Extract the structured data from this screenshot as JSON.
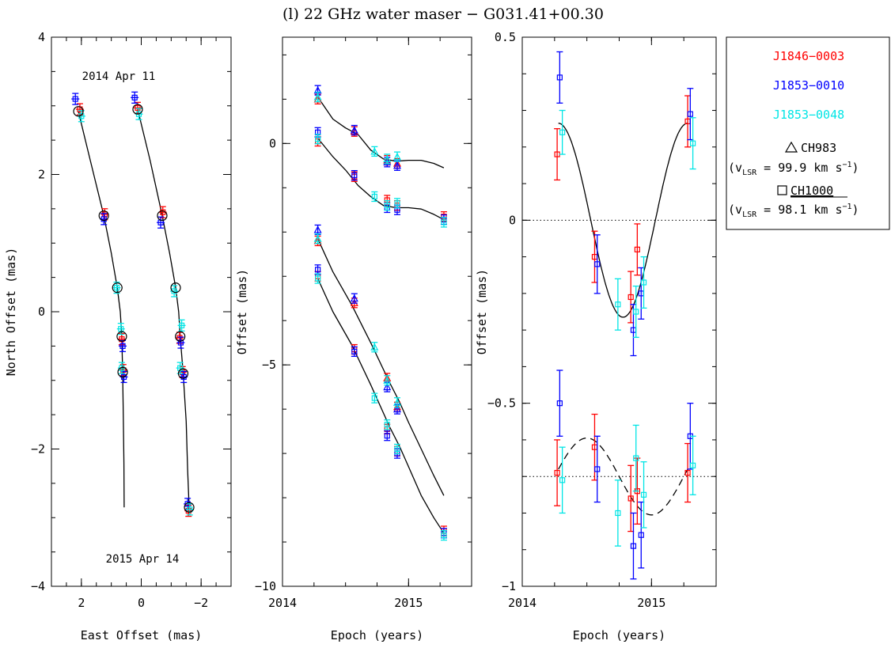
{
  "title": "(l) 22 GHz water maser − G031.41+00.30",
  "legend": {
    "references": [
      {
        "name": "J1846−0003",
        "color": "#ff0000"
      },
      {
        "name": "J1853−0010",
        "color": "#0000ff"
      },
      {
        "name": "J1853−0048",
        "color": "#00e5e5"
      }
    ],
    "spots": [
      {
        "marker": "triangle",
        "name": "CH983",
        "vel_prefix": "(v",
        "vel_sub": "LSR",
        "vel_value": " = 99.9 km s",
        "vel_exp": "−1",
        "vel_close": ")"
      },
      {
        "marker": "square",
        "name": "CH1000",
        "underline": true,
        "vel_prefix": "(v",
        "vel_sub": "LSR",
        "vel_value": " = 98.1 km s",
        "vel_exp": "−1",
        "vel_close": ")"
      }
    ]
  },
  "chart_data": [
    {
      "type": "scatter",
      "xlabel": "East Offset (mas)",
      "ylabel": "North Offset (mas)",
      "xlim": [
        3,
        -3
      ],
      "ylim": [
        -4,
        4
      ],
      "xticks": [
        2,
        0,
        -2
      ],
      "yticks": [
        -4,
        -2,
        0,
        2,
        4
      ],
      "annotations": [
        "2014 Apr 11",
        "2015 Apr 14"
      ],
      "open_circles": [
        [
          2.1,
          2.92
        ],
        [
          1.25,
          1.4
        ],
        [
          0.8,
          0.35
        ],
        [
          0.65,
          -0.36
        ],
        [
          0.62,
          -0.88
        ],
        [
          0.12,
          2.95
        ],
        [
          -0.7,
          1.4
        ],
        [
          -1.15,
          0.35
        ],
        [
          -1.3,
          -0.36
        ],
        [
          -1.4,
          -0.9
        ],
        [
          -1.6,
          -2.85
        ]
      ],
      "tracks": [
        [
          [
            2.1,
            2.92
          ],
          [
            1.7,
            2.2
          ],
          [
            1.25,
            1.4
          ],
          [
            1.0,
            0.85
          ],
          [
            0.8,
            0.35
          ],
          [
            0.7,
            0.0
          ],
          [
            0.65,
            -0.36
          ],
          [
            0.62,
            -0.88
          ],
          [
            0.6,
            -1.5
          ],
          [
            0.58,
            -2.2
          ],
          [
            0.57,
            -2.85
          ]
        ],
        [
          [
            0.12,
            2.95
          ],
          [
            -0.3,
            2.2
          ],
          [
            -0.7,
            1.4
          ],
          [
            -0.95,
            0.85
          ],
          [
            -1.15,
            0.35
          ],
          [
            -1.25,
            0.0
          ],
          [
            -1.3,
            -0.36
          ],
          [
            -1.4,
            -0.9
          ],
          [
            -1.5,
            -1.6
          ],
          [
            -1.55,
            -2.3
          ],
          [
            -1.6,
            -2.85
          ]
        ]
      ],
      "series": [
        {
          "name": "J1846−0003",
          "color": "#ff0000",
          "points": [
            [
              2.05,
              2.95
            ],
            [
              1.22,
              1.42
            ],
            [
              0.65,
              -0.4
            ],
            [
              0.6,
              -0.85
            ],
            [
              0.12,
              2.97
            ],
            [
              -0.72,
              1.45
            ],
            [
              -1.28,
              -0.38
            ],
            [
              -1.38,
              -0.88
            ],
            [
              -1.58,
              -2.9
            ]
          ]
        },
        {
          "name": "J1853−0010",
          "color": "#0000ff",
          "points": [
            [
              2.2,
              3.1
            ],
            [
              1.25,
              1.35
            ],
            [
              0.62,
              -0.5
            ],
            [
              0.58,
              -0.95
            ],
            [
              0.22,
              3.12
            ],
            [
              -0.65,
              1.3
            ],
            [
              -1.32,
              -0.45
            ],
            [
              -1.42,
              -0.95
            ],
            [
              -1.55,
              -2.8
            ]
          ]
        },
        {
          "name": "J1853−0048",
          "color": "#00e5e5",
          "points": [
            [
              2.0,
              2.85
            ],
            [
              0.82,
              0.35
            ],
            [
              0.68,
              -0.25
            ],
            [
              0.65,
              -0.82
            ],
            [
              0.08,
              2.88
            ],
            [
              -1.1,
              0.3
            ],
            [
              -1.35,
              -0.2
            ],
            [
              -1.3,
              -0.82
            ],
            [
              -1.62,
              -2.88
            ]
          ]
        }
      ]
    },
    {
      "type": "scatter",
      "xlabel": "Epoch (years)",
      "ylabel": "Offset (mas)",
      "xlim": [
        2014,
        2015.5
      ],
      "ylim": [
        -10,
        2.4
      ],
      "xticks": [
        2014,
        2015
      ],
      "yticks": [
        -10,
        -5,
        0
      ],
      "curves": [
        [
          [
            2014.28,
            1.05
          ],
          [
            2014.4,
            0.55
          ],
          [
            2014.5,
            0.35
          ],
          [
            2014.6,
            0.2
          ],
          [
            2014.7,
            -0.15
          ],
          [
            2014.8,
            -0.35
          ],
          [
            2014.9,
            -0.4
          ],
          [
            2015.0,
            -0.38
          ],
          [
            2015.1,
            -0.38
          ],
          [
            2015.2,
            -0.45
          ],
          [
            2015.28,
            -0.55
          ]
        ],
        [
          [
            2014.28,
            0.12
          ],
          [
            2014.4,
            -0.3
          ],
          [
            2014.5,
            -0.6
          ],
          [
            2014.6,
            -0.95
          ],
          [
            2014.7,
            -1.2
          ],
          [
            2014.8,
            -1.4
          ],
          [
            2014.9,
            -1.45
          ],
          [
            2015.0,
            -1.45
          ],
          [
            2015.1,
            -1.48
          ],
          [
            2015.2,
            -1.6
          ],
          [
            2015.28,
            -1.72
          ]
        ],
        [
          [
            2014.28,
            -2.15
          ],
          [
            2014.4,
            -2.9
          ],
          [
            2014.55,
            -3.65
          ],
          [
            2014.7,
            -4.5
          ],
          [
            2014.85,
            -5.4
          ],
          [
            2014.93,
            -5.85
          ],
          [
            2015.0,
            -6.3
          ],
          [
            2015.1,
            -6.9
          ],
          [
            2015.2,
            -7.5
          ],
          [
            2015.28,
            -7.95
          ]
        ],
        [
          [
            2014.28,
            -3.05
          ],
          [
            2014.4,
            -3.8
          ],
          [
            2014.55,
            -4.55
          ],
          [
            2014.7,
            -5.45
          ],
          [
            2014.85,
            -6.4
          ],
          [
            2014.93,
            -6.85
          ],
          [
            2015.0,
            -7.3
          ],
          [
            2015.1,
            -7.95
          ],
          [
            2015.2,
            -8.45
          ],
          [
            2015.28,
            -8.8
          ]
        ]
      ],
      "series": [
        {
          "name": "J1846−0003",
          "color": "#ff0000",
          "points": [
            [
              2014.28,
              1.0,
              "t"
            ],
            [
              2014.28,
              0.05,
              "s"
            ],
            [
              2014.57,
              0.27,
              "t"
            ],
            [
              2014.57,
              -0.75,
              "s"
            ],
            [
              2014.83,
              -0.38,
              "t"
            ],
            [
              2014.83,
              -1.28,
              "s"
            ],
            [
              2014.91,
              -0.45,
              "t"
            ],
            [
              2014.91,
              -1.4,
              "s"
            ],
            [
              2014.28,
              -2.2,
              "t"
            ],
            [
              2014.28,
              -3.0,
              "s"
            ],
            [
              2014.57,
              -3.6,
              "t"
            ],
            [
              2014.57,
              -4.65,
              "s"
            ],
            [
              2014.83,
              -5.3,
              "t"
            ],
            [
              2014.83,
              -6.45,
              "s"
            ],
            [
              2014.91,
              -5.95,
              "t"
            ],
            [
              2014.91,
              -6.95,
              "s"
            ],
            [
              2015.28,
              -1.65,
              "s"
            ],
            [
              2015.28,
              -8.75,
              "s"
            ]
          ]
        },
        {
          "name": "J1853−0010",
          "color": "#0000ff",
          "points": [
            [
              2014.28,
              1.2,
              "t"
            ],
            [
              2014.28,
              0.25,
              "s"
            ],
            [
              2014.57,
              0.3,
              "t"
            ],
            [
              2014.57,
              -0.72,
              "s"
            ],
            [
              2014.83,
              -0.42,
              "t"
            ],
            [
              2014.83,
              -1.45,
              "s"
            ],
            [
              2014.91,
              -0.5,
              "t"
            ],
            [
              2014.91,
              -1.5,
              "s"
            ],
            [
              2014.28,
              -1.95,
              "t"
            ],
            [
              2014.28,
              -2.85,
              "s"
            ],
            [
              2014.57,
              -3.5,
              "t"
            ],
            [
              2014.57,
              -4.7,
              "s"
            ],
            [
              2014.83,
              -5.5,
              "t"
            ],
            [
              2014.83,
              -6.6,
              "s"
            ],
            [
              2014.91,
              -6.0,
              "t"
            ],
            [
              2014.91,
              -7.0,
              "s"
            ],
            [
              2015.28,
              -1.72,
              "s"
            ],
            [
              2015.28,
              -8.8,
              "s"
            ]
          ]
        },
        {
          "name": "J1853−0048",
          "color": "#00e5e5",
          "points": [
            [
              2014.28,
              1.05,
              "t"
            ],
            [
              2014.28,
              0.1,
              "s"
            ],
            [
              2014.73,
              -0.18,
              "t"
            ],
            [
              2014.73,
              -1.2,
              "s"
            ],
            [
              2014.83,
              -0.35,
              "t"
            ],
            [
              2014.83,
              -1.4,
              "s"
            ],
            [
              2014.91,
              -0.3,
              "t"
            ],
            [
              2014.91,
              -1.35,
              "s"
            ],
            [
              2014.28,
              -2.15,
              "t"
            ],
            [
              2014.28,
              -3.05,
              "s"
            ],
            [
              2014.73,
              -4.6,
              "t"
            ],
            [
              2014.73,
              -5.75,
              "s"
            ],
            [
              2014.83,
              -5.35,
              "t"
            ],
            [
              2014.83,
              -6.35,
              "s"
            ],
            [
              2014.91,
              -5.85,
              "t"
            ],
            [
              2014.91,
              -6.9,
              "s"
            ],
            [
              2015.28,
              -1.78,
              "s"
            ],
            [
              2015.28,
              -8.85,
              "s"
            ]
          ]
        }
      ]
    },
    {
      "type": "scatter",
      "xlabel": "Epoch (years)",
      "ylabel": "Offset (mas)",
      "xlim": [
        2014,
        2015.5
      ],
      "ylim": [
        -1,
        0.5
      ],
      "xticks": [
        2014,
        2015
      ],
      "yticks": [
        -1,
        -0.5,
        0,
        0.5
      ],
      "reference_lines": [
        0,
        -0.7
      ],
      "fits": [
        {
          "style": "solid",
          "amplitude": 0.265,
          "offset": 0,
          "period": 1.0,
          "peak": 2014.28
        },
        {
          "style": "dashed",
          "amplitude": 0.105,
          "offset": -0.7,
          "period": 1.0,
          "peak": 2014.5
        }
      ],
      "series": [
        {
          "name": "J1846−0003",
          "color": "#ff0000",
          "points": [
            [
              2014.27,
              0.18,
              0.07
            ],
            [
              2014.56,
              -0.1,
              0.07
            ],
            [
              2014.84,
              -0.21,
              0.07
            ],
            [
              2014.89,
              -0.08,
              0.07
            ],
            [
              2015.28,
              0.27,
              0.07
            ],
            [
              2014.27,
              -0.69,
              0.09
            ],
            [
              2014.56,
              -0.62,
              0.09
            ],
            [
              2014.84,
              -0.76,
              0.09
            ],
            [
              2014.89,
              -0.74,
              0.09
            ],
            [
              2015.28,
              -0.69,
              0.08
            ]
          ]
        },
        {
          "name": "J1853−0010",
          "color": "#0000ff",
          "points": [
            [
              2014.29,
              0.39,
              0.07
            ],
            [
              2014.58,
              -0.12,
              0.08
            ],
            [
              2014.86,
              -0.3,
              0.07
            ],
            [
              2014.92,
              -0.2,
              0.07
            ],
            [
              2015.3,
              0.29,
              0.07
            ],
            [
              2014.29,
              -0.5,
              0.09
            ],
            [
              2014.58,
              -0.68,
              0.09
            ],
            [
              2014.86,
              -0.89,
              0.09
            ],
            [
              2014.92,
              -0.86,
              0.09
            ],
            [
              2015.3,
              -0.59,
              0.09
            ]
          ]
        },
        {
          "name": "J1853−0048",
          "color": "#00e5e5",
          "points": [
            [
              2014.31,
              0.24,
              0.06
            ],
            [
              2014.74,
              -0.23,
              0.07
            ],
            [
              2014.88,
              -0.25,
              0.07
            ],
            [
              2014.94,
              -0.17,
              0.07
            ],
            [
              2015.32,
              0.21,
              0.07
            ],
            [
              2014.31,
              -0.71,
              0.09
            ],
            [
              2014.74,
              -0.8,
              0.09
            ],
            [
              2014.88,
              -0.65,
              0.09
            ],
            [
              2014.94,
              -0.75,
              0.09
            ],
            [
              2015.32,
              -0.67,
              0.08
            ]
          ]
        }
      ]
    }
  ]
}
